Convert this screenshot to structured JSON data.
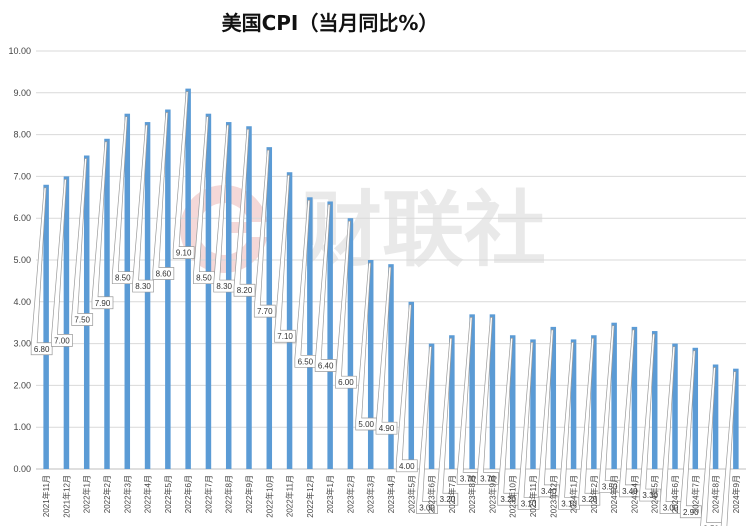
{
  "chart_data": {
    "type": "bar",
    "title": "美国CPI（当月同比%）",
    "xlabel": "",
    "ylabel": "",
    "ylim": [
      0,
      10
    ],
    "yticks": [
      "0.00",
      "1.00",
      "2.00",
      "3.00",
      "4.00",
      "5.00",
      "6.00",
      "7.00",
      "8.00",
      "9.00",
      "10.00"
    ],
    "grid": true,
    "legend": "none",
    "bar_color": "#5b9bd5",
    "categories": [
      "2021年11月",
      "2021年12月",
      "2022年1月",
      "2022年2月",
      "2022年3月",
      "2022年4月",
      "2022年5月",
      "2022年6月",
      "2022年7月",
      "2022年8月",
      "2022年9月",
      "2022年10月",
      "2022年11月",
      "2022年12月",
      "2023年1月",
      "2023年2月",
      "2023年3月",
      "2023年4月",
      "2023年5月",
      "2023年6月",
      "2023年7月",
      "2023年8月",
      "2023年9月",
      "2023年10月",
      "2023年11月",
      "2023年12月",
      "2024年1月",
      "2024年2月",
      "2024年3月",
      "2024年4月",
      "2024年5月",
      "2024年6月",
      "2024年7月",
      "2024年8月",
      "2024年9月"
    ],
    "values": [
      6.8,
      7.0,
      7.5,
      7.9,
      8.5,
      8.3,
      8.6,
      9.1,
      8.5,
      8.3,
      8.2,
      7.7,
      7.1,
      6.5,
      6.4,
      6.0,
      5.0,
      4.9,
      4.0,
      3.0,
      3.2,
      3.7,
      3.7,
      3.2,
      3.1,
      3.4,
      3.1,
      3.2,
      3.5,
      3.4,
      3.3,
      3.0,
      2.9,
      2.5,
      2.4
    ],
    "data_labels": [
      "6.80",
      "7.00",
      "7.50",
      "7.90",
      "8.50",
      "8.30",
      "8.60",
      "9.10",
      "8.50",
      "8.30",
      "8.20",
      "7.70",
      "7.10",
      "6.50",
      "6.40",
      "6.00",
      "5.00",
      "4.90",
      "4.00",
      "3.00",
      "3.20",
      "3.70",
      "3.70",
      "3.20",
      "3.10",
      "3.40",
      "3.10",
      "3.20",
      "3.50",
      "3.40",
      "3.30",
      "3.00",
      "2.90",
      "2.50",
      "2.40"
    ]
  },
  "watermark": {
    "text": "财联社",
    "logo_color": "#f3d6d6",
    "text_color": "#e9e9e9"
  }
}
